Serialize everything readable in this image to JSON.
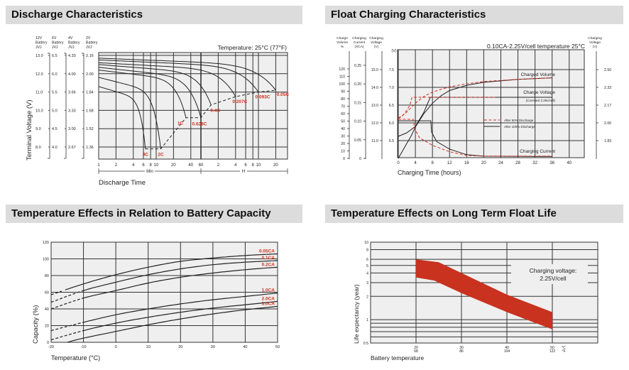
{
  "titles": {
    "discharge": "Discharge Characteristics",
    "float": "Float Charging Characteristics",
    "temperature": "Temperature Effects in Relation to Battery Capacity",
    "life": "Temperature Effects on Long Term Float Life"
  },
  "colors": {
    "label_red": "#d0301e",
    "band_red": "#c8321f",
    "plot_bg": "#efefef",
    "grid": "#333333",
    "title_bg": "#dcdcdc"
  },
  "chart_data": [
    {
      "type": "line",
      "title": "Discharge Characteristics",
      "xlabel": "Discharge Time",
      "ylabel": "Terminal Voltage (V)",
      "annotation": "Temperature: 25°C (77°F)",
      "x_scale": "log",
      "x_groups": [
        {
          "label": "Min",
          "unit": "min",
          "ticks": [
            1,
            2,
            4,
            6,
            8,
            10,
            20,
            40,
            60
          ]
        },
        {
          "label": "H",
          "unit": "h",
          "ticks": [
            2,
            4,
            6,
            8,
            10,
            20
          ]
        }
      ],
      "y_axes": [
        {
          "header": [
            "12V",
            "Battery",
            "JVJ"
          ],
          "ticks": [
            "13.0",
            "12.0",
            "11.0",
            "10.0",
            "9.0",
            "8.0"
          ]
        },
        {
          "header": [
            "6V",
            "Battery",
            "JVJ"
          ],
          "ticks": [
            "6.5",
            "6.0",
            "5.5",
            "5.0",
            "4.5",
            "4.0"
          ]
        },
        {
          "header": [
            "4V",
            "Battery",
            "JVJ"
          ],
          "ticks": [
            "4.33",
            "4.00",
            "3.66",
            "3.33",
            "3.00",
            "2.67"
          ]
        },
        {
          "header": [
            "2V",
            "Battery",
            "JVJ"
          ],
          "ticks": [
            "2.16",
            "2.00",
            "1.84",
            "1.68",
            "1.52",
            "1.36"
          ]
        }
      ],
      "ylim_12v": [
        7.35,
        13.15
      ],
      "series": [
        {
          "name": "3C",
          "start_v": 11.3,
          "end_time": 6.5,
          "end_unit": "min",
          "end_v": 7.9
        },
        {
          "name": "2C",
          "start_v": 11.8,
          "end_time": 12,
          "end_unit": "min",
          "end_v": 7.9
        },
        {
          "name": "1C",
          "start_v": 12.2,
          "end_time": 33,
          "end_unit": "min",
          "end_v": 9.6
        },
        {
          "name": "0.628C",
          "start_v": 12.35,
          "end_time": 60,
          "end_unit": "min",
          "end_v": 9.6
        },
        {
          "name": "0.4C",
          "start_v": 12.5,
          "end_time": 1.5,
          "end_unit": "h",
          "end_v": 10.3
        },
        {
          "name": "0.207C",
          "start_v": 12.6,
          "end_time": 4,
          "end_unit": "h",
          "end_v": 10.75
        },
        {
          "name": "0.093C",
          "start_v": 12.75,
          "end_time": 10,
          "end_unit": "h",
          "end_v": 11.0
        },
        {
          "name": "0.05C",
          "start_v": 12.85,
          "end_time": 20,
          "end_unit": "h",
          "end_v": 11.1
        }
      ]
    },
    {
      "type": "line",
      "title": "Float Charging Characteristics",
      "xlabel": "Charging Time (hours)",
      "annotation": "0.10CA-2.25V/cell  temperature 25°C",
      "x_ticks": [
        0,
        4,
        8,
        12,
        16,
        20,
        24,
        28,
        32,
        36,
        40
      ],
      "xlim": [
        0,
        43.5
      ],
      "axes": {
        "volume": {
          "header": [
            "Charge",
            "Volume",
            "%"
          ],
          "ticks": [
            0,
            10,
            20,
            30,
            40,
            50,
            60,
            70,
            80,
            90,
            100,
            110,
            120
          ]
        },
        "current": {
          "header": [
            "Charging",
            "Current",
            "(XCA)"
          ],
          "ticks": [
            "0",
            "0.05",
            "0.10",
            "0.15",
            "0.20",
            "0.25"
          ]
        },
        "voltage": {
          "header": [
            "Charging",
            "Voltage",
            "(V)"
          ],
          "ticks": [
            "11.0",
            "12.0",
            "13.0",
            "14.0",
            "15.0"
          ]
        },
        "cell_v": {
          "header": [
            "(V)"
          ],
          "ticks": [
            "5.5",
            "6.0",
            "6.5",
            "7.0",
            "7.5"
          ]
        },
        "right": {
          "header": [
            "Charging",
            "Voltage",
            "(V)"
          ],
          "ticks": [
            "1.83",
            "2.00",
            "2.17",
            "2.33",
            "2.50"
          ]
        }
      },
      "annotations": {
        "volume": "Charged Volume",
        "voltage": "Charge Voltage",
        "voltage_note": "(Constant 2.25v/cell)",
        "current": "Charging Current"
      },
      "legend": {
        "dashed": "After  50% Discharge",
        "solid": "After 100% Discharge",
        "position": "center-right"
      },
      "series": [
        {
          "name": "After 100% Discharge",
          "quantity": "volume",
          "style": "solid",
          "points": [
            [
              0,
              0
            ],
            [
              1,
              10
            ],
            [
              2,
              20
            ],
            [
              3,
              30
            ],
            [
              4,
              42
            ],
            [
              6,
              60
            ],
            [
              8,
              74
            ],
            [
              10,
              84
            ],
            [
              12,
              91
            ],
            [
              16,
              98
            ],
            [
              20,
              102
            ],
            [
              28,
              106
            ],
            [
              36,
              108
            ]
          ]
        },
        {
          "name": "After  50% Discharge",
          "quantity": "volume",
          "style": "dashed",
          "points": [
            [
              0,
              53
            ],
            [
              2,
              62
            ],
            [
              4,
              74
            ],
            [
              6,
              83
            ],
            [
              8,
              89
            ],
            [
              12,
              96
            ],
            [
              16,
              100
            ],
            [
              20,
              103
            ],
            [
              28,
              106
            ],
            [
              36,
              108
            ]
          ]
        },
        {
          "name": "After 100% Discharge",
          "quantity": "cell_v",
          "style": "solid",
          "points": [
            [
              0,
              5.62
            ],
            [
              2,
              5.72
            ],
            [
              4,
              5.9
            ],
            [
              6,
              6.3
            ],
            [
              7.5,
              6.72
            ],
            [
              36,
              6.72
            ]
          ]
        },
        {
          "name": "After  50% Discharge",
          "quantity": "cell_v",
          "style": "dashed",
          "points": [
            [
              0,
              6.14
            ],
            [
              1,
              6.2
            ],
            [
              2,
              6.35
            ],
            [
              2.7,
              6.5
            ],
            [
              3.2,
              6.72
            ],
            [
              23,
              6.72
            ]
          ]
        },
        {
          "name": "After 100% Discharge",
          "quantity": "current",
          "style": "solid",
          "points": [
            [
              0,
              0.101
            ],
            [
              7.6,
              0.101
            ],
            [
              7.8,
              0.07
            ],
            [
              9,
              0.045
            ],
            [
              12,
              0.025
            ],
            [
              16,
              0.01
            ],
            [
              20,
              0.006
            ],
            [
              36,
              0.005
            ]
          ]
        },
        {
          "name": "After  50% Discharge",
          "quantity": "current",
          "style": "dashed",
          "points": [
            [
              0,
              0.105
            ],
            [
              3.5,
              0.105
            ],
            [
              3.8,
              0.08
            ],
            [
              5,
              0.055
            ],
            [
              8,
              0.035
            ],
            [
              12,
              0.018
            ],
            [
              16,
              0.008
            ],
            [
              20,
              0.006
            ],
            [
              36,
              0.006
            ]
          ]
        }
      ]
    },
    {
      "type": "line",
      "title": "Temperature Effects in Relation to Battery Capacity",
      "xlabel": "Temperature (°C)",
      "ylabel": "Capacity (%)",
      "x": [
        -20,
        -10,
        0,
        10,
        20,
        30,
        40,
        50
      ],
      "x_ticks": [
        -20,
        -10,
        0,
        10,
        20,
        30,
        40,
        50
      ],
      "y_ticks": [
        0,
        20,
        40,
        60,
        80,
        100,
        120
      ],
      "xlim": [
        -20,
        50
      ],
      "ylim": [
        0,
        120
      ],
      "grid": true,
      "series": [
        {
          "name": "0.05CA",
          "values": [
            57,
            70,
            81,
            90,
            97,
            101,
            104,
            106
          ],
          "dashed_until": -16
        },
        {
          "name": "0.1CA",
          "values": [
            48,
            62,
            72,
            81,
            88,
            93,
            96,
            98
          ],
          "dashed_until": -10
        },
        {
          "name": "0.2CA",
          "values": [
            40,
            53,
            62,
            71,
            78,
            83,
            87,
            90
          ],
          "dashed_until": -10
        },
        {
          "name": "1.0CA",
          "values": [
            14,
            24,
            33,
            40,
            46,
            51,
            55,
            59
          ],
          "dashed_until": -10
        },
        {
          "name": "2.0CA",
          "values": [
            3,
            14,
            23,
            30,
            36,
            41,
            45,
            49
          ],
          "dashed_until": -10
        },
        {
          "name": "3.0CA",
          "values": [
            null,
            5,
            13,
            21,
            28,
            34,
            39,
            43
          ],
          "start": [
            -15,
            0
          ],
          "dashed_until": -20
        }
      ]
    },
    {
      "type": "area",
      "title": "Temperature Effects on Long Term Float Life",
      "xlabel": "Battery temperature",
      "ylabel": "Life expectancy (year)",
      "y_scale": "log",
      "ylim": [
        0.5,
        10
      ],
      "xlim": [
        10,
        60
      ],
      "y_ticks": [
        "0.5",
        "1",
        "2",
        "3",
        "4",
        "5",
        "6",
        "8",
        "10"
      ],
      "y_gridlines": [
        0.6,
        0.7,
        0.8,
        0.9,
        1,
        2,
        3,
        4,
        5,
        6,
        8
      ],
      "x_ticks": [
        {
          "c": "20",
          "f": "68"
        },
        {
          "c": "30",
          "f": "86"
        },
        {
          "c": "40",
          "f": "104"
        },
        {
          "c": "50",
          "f": "122"
        }
      ],
      "x_units": {
        "c": "°C",
        "f": "°F"
      },
      "annotation": [
        "Charging voltage:",
        "2.25V/cell"
      ],
      "band_upper": [
        [
          20,
          6
        ],
        [
          25,
          5.5
        ],
        [
          30,
          4
        ],
        [
          40,
          2.1
        ],
        [
          50,
          1.25
        ]
      ],
      "band_lower": [
        [
          20,
          3.5
        ],
        [
          24,
          3.2
        ],
        [
          30,
          2.2
        ],
        [
          40,
          1.25
        ],
        [
          50,
          0.75
        ]
      ]
    }
  ]
}
